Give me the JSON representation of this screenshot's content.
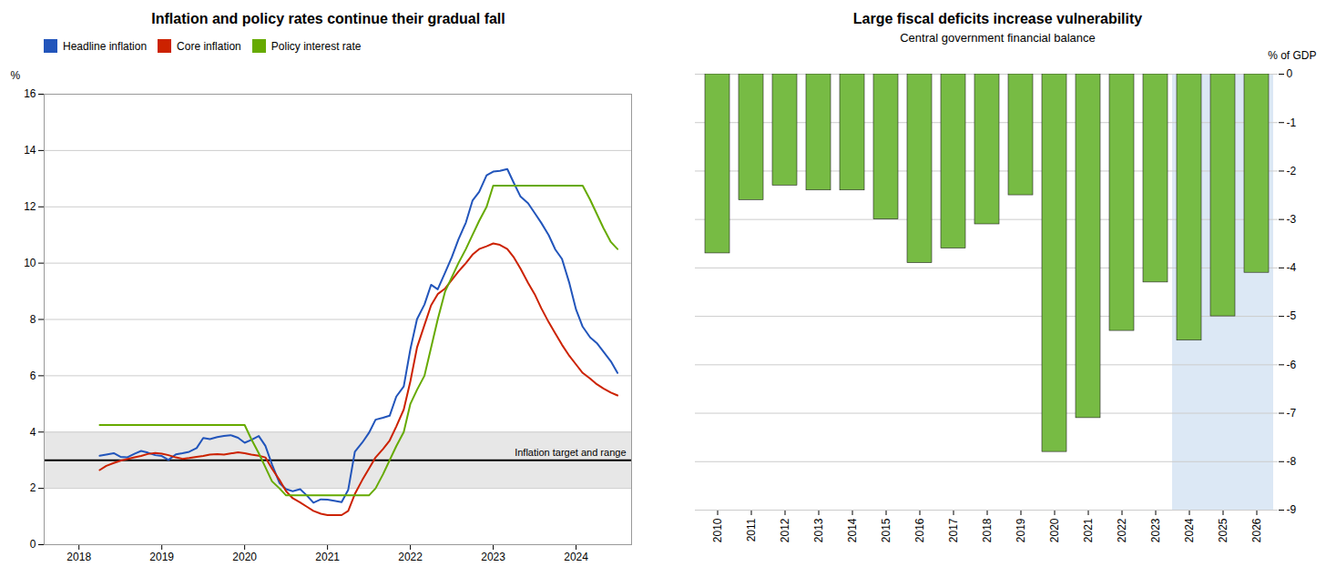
{
  "chart_data": [
    {
      "type": "line",
      "title": "Inflation and policy rates continue their gradual fall",
      "ylabel": "%",
      "xlim": [
        2017.58,
        2024.67
      ],
      "xticks": [
        2018,
        2019,
        2020,
        2021,
        2022,
        2023,
        2024
      ],
      "ylim": [
        0,
        16
      ],
      "yticks": [
        0,
        2,
        4,
        6,
        8,
        10,
        12,
        14,
        16
      ],
      "grid": true,
      "legend": "upper left",
      "reference_line": {
        "value": 3.0,
        "range": [
          2.0,
          4.0
        ],
        "label": "Inflation target and range",
        "color": "#000000",
        "range_color": "#dddddd"
      },
      "series": [
        {
          "name": "Headline inflation",
          "color": "#2255bb",
          "x": [
            2018.25,
            2018.33,
            2018.42,
            2018.5,
            2018.58,
            2018.67,
            2018.75,
            2018.83,
            2018.92,
            2019.0,
            2019.08,
            2019.17,
            2019.25,
            2019.33,
            2019.42,
            2019.5,
            2019.58,
            2019.67,
            2019.75,
            2019.83,
            2019.92,
            2020.0,
            2020.08,
            2020.17,
            2020.25,
            2020.33,
            2020.42,
            2020.5,
            2020.58,
            2020.67,
            2020.75,
            2020.83,
            2020.92,
            2021.0,
            2021.08,
            2021.17,
            2021.25,
            2021.33,
            2021.42,
            2021.5,
            2021.58,
            2021.67,
            2021.75,
            2021.83,
            2021.92,
            2022.0,
            2022.08,
            2022.17,
            2022.25,
            2022.33,
            2022.42,
            2022.5,
            2022.58,
            2022.67,
            2022.75,
            2022.83,
            2022.92,
            2023.0,
            2023.08,
            2023.17,
            2023.25,
            2023.33,
            2023.42,
            2023.5,
            2023.58,
            2023.67,
            2023.75,
            2023.83,
            2023.92,
            2024.0,
            2024.08,
            2024.17,
            2024.25,
            2024.33,
            2024.42,
            2024.5
          ],
          "values": [
            3.16,
            3.2,
            3.25,
            3.12,
            3.1,
            3.23,
            3.33,
            3.27,
            3.18,
            3.15,
            3.01,
            3.21,
            3.25,
            3.3,
            3.43,
            3.79,
            3.75,
            3.82,
            3.86,
            3.89,
            3.8,
            3.62,
            3.72,
            3.86,
            3.51,
            2.85,
            2.19,
            1.97,
            1.9,
            1.97,
            1.75,
            1.49,
            1.61,
            1.6,
            1.56,
            1.51,
            1.95,
            3.3,
            3.63,
            3.97,
            4.44,
            4.51,
            4.58,
            5.26,
            5.62,
            6.94,
            8.01,
            8.53,
            9.23,
            9.07,
            9.67,
            10.21,
            10.84,
            11.44,
            12.22,
            12.53,
            13.12,
            13.25,
            13.28,
            13.34,
            12.84,
            12.36,
            12.13,
            11.78,
            11.43,
            10.99,
            10.48,
            10.15,
            9.28,
            8.35,
            7.74,
            7.36,
            7.16,
            6.86,
            6.51,
            6.1
          ]
        },
        {
          "name": "Core inflation",
          "color": "#cc2200",
          "x": [
            2018.25,
            2018.33,
            2018.42,
            2018.5,
            2018.58,
            2018.67,
            2018.75,
            2018.83,
            2018.92,
            2019.0,
            2019.08,
            2019.17,
            2019.25,
            2019.33,
            2019.42,
            2019.5,
            2019.58,
            2019.67,
            2019.75,
            2019.83,
            2019.92,
            2020.0,
            2020.08,
            2020.17,
            2020.25,
            2020.33,
            2020.42,
            2020.5,
            2020.58,
            2020.67,
            2020.75,
            2020.83,
            2020.92,
            2021.0,
            2021.08,
            2021.17,
            2021.25,
            2021.33,
            2021.42,
            2021.5,
            2021.58,
            2021.67,
            2021.75,
            2021.83,
            2021.92,
            2022.0,
            2022.08,
            2022.17,
            2022.25,
            2022.33,
            2022.42,
            2022.5,
            2022.58,
            2022.67,
            2022.75,
            2022.83,
            2022.92,
            2023.0,
            2023.08,
            2023.17,
            2023.25,
            2023.33,
            2023.42,
            2023.5,
            2023.58,
            2023.67,
            2023.75,
            2023.83,
            2023.92,
            2024.0,
            2024.08,
            2024.17,
            2024.25,
            2024.33,
            2024.42,
            2024.5
          ],
          "values": [
            2.65,
            2.8,
            2.9,
            2.98,
            3.04,
            3.1,
            3.15,
            3.22,
            3.26,
            3.23,
            3.18,
            3.1,
            3.05,
            3.08,
            3.12,
            3.15,
            3.2,
            3.22,
            3.2,
            3.24,
            3.28,
            3.25,
            3.2,
            3.16,
            3.1,
            2.7,
            2.3,
            1.9,
            1.65,
            1.5,
            1.35,
            1.2,
            1.1,
            1.05,
            1.05,
            1.05,
            1.2,
            1.8,
            2.3,
            2.7,
            3.1,
            3.4,
            3.7,
            4.2,
            4.8,
            5.8,
            7.0,
            7.8,
            8.5,
            8.9,
            9.1,
            9.4,
            9.7,
            10.0,
            10.3,
            10.5,
            10.6,
            10.7,
            10.65,
            10.5,
            10.2,
            9.8,
            9.3,
            8.9,
            8.4,
            7.9,
            7.5,
            7.1,
            6.7,
            6.4,
            6.1,
            5.9,
            5.7,
            5.55,
            5.4,
            5.3
          ]
        },
        {
          "name": "Policy interest rate",
          "color": "#66aa00",
          "x": [
            2018.25,
            2018.5,
            2019.0,
            2019.5,
            2020.0,
            2020.08,
            2020.17,
            2020.25,
            2020.33,
            2020.42,
            2020.5,
            2020.58,
            2020.67,
            2020.75,
            2020.83,
            2020.92,
            2021.0,
            2021.5,
            2021.58,
            2021.67,
            2021.75,
            2021.83,
            2021.92,
            2022.0,
            2022.08,
            2022.17,
            2022.25,
            2022.33,
            2022.42,
            2022.5,
            2022.58,
            2022.67,
            2022.75,
            2022.83,
            2022.92,
            2023.0,
            2023.08,
            2023.17,
            2023.25,
            2023.33,
            2023.42,
            2023.5,
            2023.58,
            2023.67,
            2023.75,
            2023.83,
            2023.92,
            2024.0,
            2024.08,
            2024.17,
            2024.25,
            2024.33,
            2024.42,
            2024.5
          ],
          "values": [
            4.25,
            4.25,
            4.25,
            4.25,
            4.25,
            3.75,
            3.25,
            2.75,
            2.25,
            2.0,
            1.75,
            1.75,
            1.75,
            1.75,
            1.75,
            1.75,
            1.75,
            1.75,
            2.0,
            2.5,
            3.0,
            3.5,
            4.0,
            5.0,
            5.5,
            6.0,
            7.0,
            8.0,
            9.0,
            9.5,
            10.0,
            10.5,
            11.0,
            11.5,
            12.0,
            12.75,
            12.75,
            12.75,
            12.75,
            12.75,
            12.75,
            12.75,
            12.75,
            12.75,
            12.75,
            12.75,
            12.75,
            12.75,
            12.75,
            12.25,
            11.75,
            11.25,
            10.75,
            10.5
          ]
        }
      ]
    },
    {
      "type": "bar",
      "title": "Large fiscal deficits increase vulnerability",
      "subtitle": "Central government financial balance",
      "ylabel": "% of GDP",
      "categories": [
        2010,
        2011,
        2012,
        2013,
        2014,
        2015,
        2016,
        2017,
        2018,
        2019,
        2020,
        2021,
        2022,
        2023,
        2024,
        2025,
        2026
      ],
      "values": [
        -3.7,
        -2.6,
        -2.3,
        -2.4,
        -2.4,
        -3.0,
        -3.9,
        -3.6,
        -3.1,
        -2.5,
        -7.8,
        -7.1,
        -5.3,
        -4.3,
        -5.5,
        -5.0,
        -4.1
      ],
      "color": "#77bb44",
      "edge_color": "#222222",
      "forecast_start": 2024,
      "forecast_color": "#dce8f5",
      "ylim": [
        -9,
        0
      ],
      "yticks": [
        0,
        -1,
        -2,
        -3,
        -4,
        -5,
        -6,
        -7,
        -8,
        -9
      ],
      "grid": true
    }
  ]
}
